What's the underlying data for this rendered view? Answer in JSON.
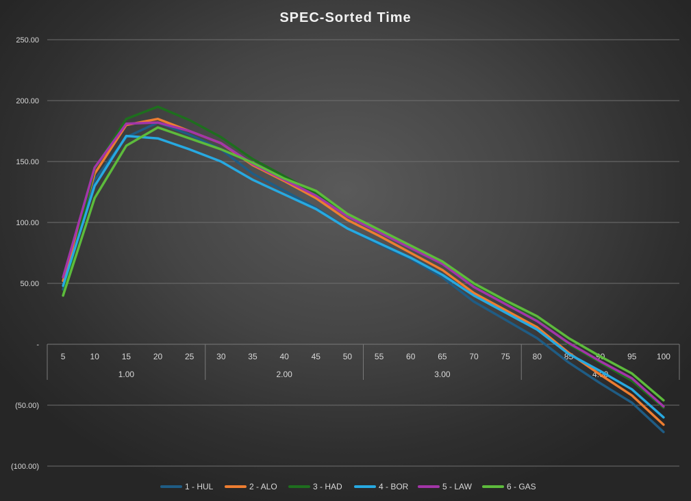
{
  "chart_data": {
    "type": "line",
    "title": "SPEC-Sorted Time",
    "ylim": [
      -100,
      250
    ],
    "yticks": [
      250,
      200,
      150,
      100,
      50,
      0,
      -50,
      -100
    ],
    "ytick_labels": [
      "250.00",
      "200.00",
      "150.00",
      "100.00",
      "50.00",
      "-",
      "(50.00)",
      "(100.00)"
    ],
    "categories": [
      "5",
      "10",
      "15",
      "20",
      "25",
      "30",
      "35",
      "40",
      "45",
      "50",
      "55",
      "60",
      "65",
      "70",
      "75",
      "80",
      "85",
      "90",
      "95",
      "100"
    ],
    "groups": [
      {
        "label": "1.00",
        "start": 0,
        "end": 4
      },
      {
        "label": "2.00",
        "start": 5,
        "end": 9
      },
      {
        "label": "3.00",
        "start": 10,
        "end": 14
      },
      {
        "label": "4.00",
        "start": 15,
        "end": 19
      }
    ],
    "legend_position": "bottom",
    "series": [
      {
        "name": "1 - HUL",
        "color": "#1f5c84",
        "values": [
          45,
          135,
          170,
          182,
          172,
          160,
          140,
          126,
          112,
          95,
          82,
          70,
          55,
          35,
          20,
          5,
          -15,
          -32,
          -48,
          -72
        ]
      },
      {
        "name": "2 - ALO",
        "color": "#ed7d31",
        "values": [
          52,
          140,
          180,
          185,
          175,
          165,
          147,
          134,
          120,
          102,
          89,
          75,
          61,
          42,
          28,
          14,
          -7,
          -25,
          -42,
          -66
        ]
      },
      {
        "name": "3 - HAD",
        "color": "#1e6e1e",
        "values": [
          40,
          144,
          185,
          195,
          184,
          170,
          152,
          138,
          124,
          106,
          93,
          80,
          67,
          48,
          34,
          20,
          0,
          -15,
          -30,
          -52
        ]
      },
      {
        "name": "4 - BOR",
        "color": "#27a9e1",
        "values": [
          48,
          130,
          171,
          169,
          160,
          150,
          135,
          123,
          111,
          95,
          83,
          71,
          57,
          40,
          26,
          12,
          -8,
          -22,
          -37,
          -60
        ]
      },
      {
        "name": "5 - LAW",
        "color": "#a335a8",
        "values": [
          55,
          145,
          181,
          182,
          175,
          165,
          148,
          135,
          122,
          105,
          92,
          79,
          66,
          47,
          33,
          19,
          1,
          -14,
          -28,
          -51
        ]
      },
      {
        "name": "6 - GAS",
        "color": "#5dbb3c",
        "values": [
          40,
          120,
          163,
          178,
          169,
          160,
          149,
          136,
          126,
          107,
          94,
          81,
          68,
          50,
          36,
          23,
          5,
          -10,
          -24,
          -46
        ]
      }
    ]
  }
}
